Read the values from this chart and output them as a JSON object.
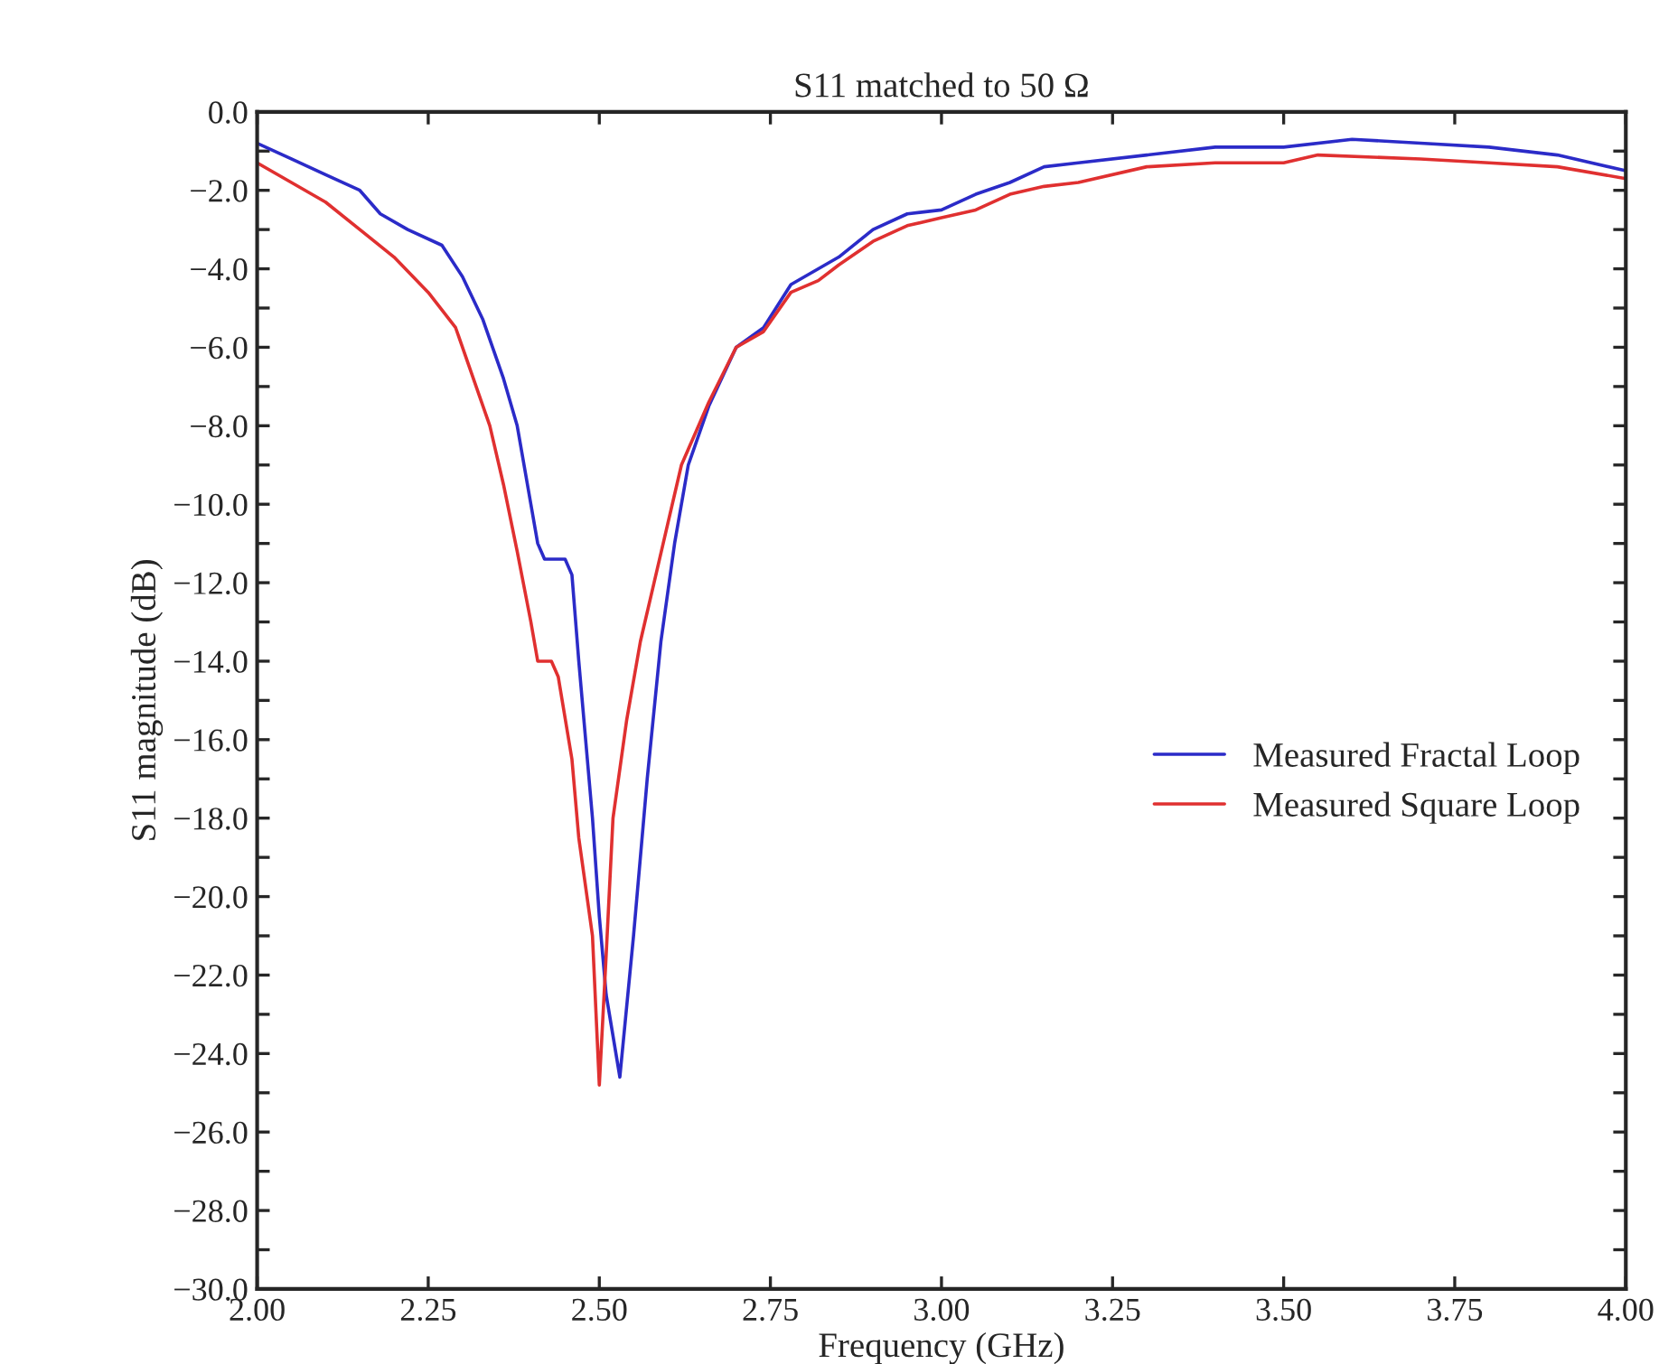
{
  "chart_data": {
    "type": "line",
    "title": "S11 matched to 50 Ω",
    "xlabel": "Frequency (GHz)",
    "ylabel": "S11 magnitude (dB)",
    "xlim": [
      2.0,
      4.0
    ],
    "ylim": [
      -30.0,
      0.0
    ],
    "xticks": [
      {
        "value": 2.0,
        "label": "2.00"
      },
      {
        "value": 2.25,
        "label": "2.25"
      },
      {
        "value": 2.5,
        "label": "2.50"
      },
      {
        "value": 2.75,
        "label": "2.75"
      },
      {
        "value": 3.0,
        "label": "3.00"
      },
      {
        "value": 3.25,
        "label": "3.25"
      },
      {
        "value": 3.5,
        "label": "3.50"
      },
      {
        "value": 3.75,
        "label": "3.75"
      },
      {
        "value": 4.0,
        "label": "4.00"
      }
    ],
    "yticks": [
      {
        "value": 0,
        "label": "0.0"
      },
      {
        "value": -1,
        "label": null
      },
      {
        "value": -2,
        "label": "−2.0"
      },
      {
        "value": -3,
        "label": null
      },
      {
        "value": -4,
        "label": "−4.0"
      },
      {
        "value": -5,
        "label": null
      },
      {
        "value": -6,
        "label": "−6.0"
      },
      {
        "value": -7,
        "label": null
      },
      {
        "value": -8,
        "label": "−8.0"
      },
      {
        "value": -9,
        "label": null
      },
      {
        "value": -10,
        "label": "−10.0"
      },
      {
        "value": -11,
        "label": null
      },
      {
        "value": -12,
        "label": "−12.0"
      },
      {
        "value": -13,
        "label": null
      },
      {
        "value": -14,
        "label": "−14.0"
      },
      {
        "value": -15,
        "label": null
      },
      {
        "value": -16,
        "label": "−16.0"
      },
      {
        "value": -17,
        "label": null
      },
      {
        "value": -18,
        "label": "−18.0"
      },
      {
        "value": -19,
        "label": null
      },
      {
        "value": -20,
        "label": "−20.0"
      },
      {
        "value": -21,
        "label": null
      },
      {
        "value": -22,
        "label": "−22.0"
      },
      {
        "value": -23,
        "label": null
      },
      {
        "value": -24,
        "label": "−24.0"
      },
      {
        "value": -25,
        "label": null
      },
      {
        "value": -26,
        "label": "−26.0"
      },
      {
        "value": -27,
        "label": null
      },
      {
        "value": -28,
        "label": "−28.0"
      },
      {
        "value": -29,
        "label": null
      },
      {
        "value": -30,
        "label": "−30.0"
      }
    ],
    "grid": false,
    "legend": "right",
    "line_style": "solid",
    "series": [
      {
        "name": "Measured Fractal Loop",
        "color": "#2b2bc8",
        "x": [
          2.0,
          2.05,
          2.1,
          2.15,
          2.18,
          2.22,
          2.27,
          2.3,
          2.33,
          2.36,
          2.38,
          2.4,
          2.41,
          2.42,
          2.45,
          2.46,
          2.47,
          2.49,
          2.5,
          2.51,
          2.53,
          2.55,
          2.57,
          2.59,
          2.61,
          2.63,
          2.66,
          2.7,
          2.74,
          2.78,
          2.85,
          2.9,
          2.95,
          3.0,
          3.05,
          3.1,
          3.15,
          3.2,
          3.3,
          3.4,
          3.5,
          3.6,
          3.7,
          3.8,
          3.9,
          4.0
        ],
        "values": [
          -0.8,
          -1.2,
          -1.6,
          -2.0,
          -2.6,
          -3.0,
          -3.4,
          -4.2,
          -5.3,
          -6.8,
          -8.0,
          -10.0,
          -11.0,
          -11.4,
          -11.4,
          -11.8,
          -14.0,
          -18.0,
          -20.5,
          -22.5,
          -24.6,
          -21.0,
          -17.0,
          -13.5,
          -11.0,
          -9.0,
          -7.5,
          -6.0,
          -5.5,
          -4.4,
          -3.7,
          -3.0,
          -2.6,
          -2.5,
          -2.1,
          -1.8,
          -1.4,
          -1.3,
          -1.1,
          -0.9,
          -0.9,
          -0.7,
          -0.8,
          -0.9,
          -1.1,
          -1.5
        ]
      },
      {
        "name": "Measured Square Loop",
        "color": "#e03030",
        "x": [
          2.0,
          2.05,
          2.1,
          2.15,
          2.2,
          2.25,
          2.29,
          2.31,
          2.34,
          2.36,
          2.38,
          2.4,
          2.41,
          2.43,
          2.44,
          2.46,
          2.47,
          2.49,
          2.5,
          2.51,
          2.52,
          2.54,
          2.56,
          2.58,
          2.6,
          2.62,
          2.66,
          2.7,
          2.74,
          2.78,
          2.82,
          2.85,
          2.9,
          2.95,
          3.0,
          3.05,
          3.1,
          3.15,
          3.2,
          3.3,
          3.4,
          3.5,
          3.55,
          3.7,
          3.8,
          3.9,
          4.0
        ],
        "values": [
          -1.3,
          -1.8,
          -2.3,
          -3.0,
          -3.7,
          -4.6,
          -5.5,
          -6.5,
          -8.0,
          -9.5,
          -11.2,
          -13.0,
          -14.0,
          -14.0,
          -14.4,
          -16.5,
          -18.5,
          -21.0,
          -24.8,
          -21.5,
          -18.0,
          -15.5,
          -13.5,
          -12.0,
          -10.5,
          -9.0,
          -7.4,
          -6.0,
          -5.6,
          -4.6,
          -4.3,
          -3.9,
          -3.3,
          -2.9,
          -2.7,
          -2.5,
          -2.1,
          -1.9,
          -1.8,
          -1.4,
          -1.3,
          -1.3,
          -1.1,
          -1.2,
          -1.3,
          -1.4,
          -1.7
        ]
      }
    ]
  }
}
